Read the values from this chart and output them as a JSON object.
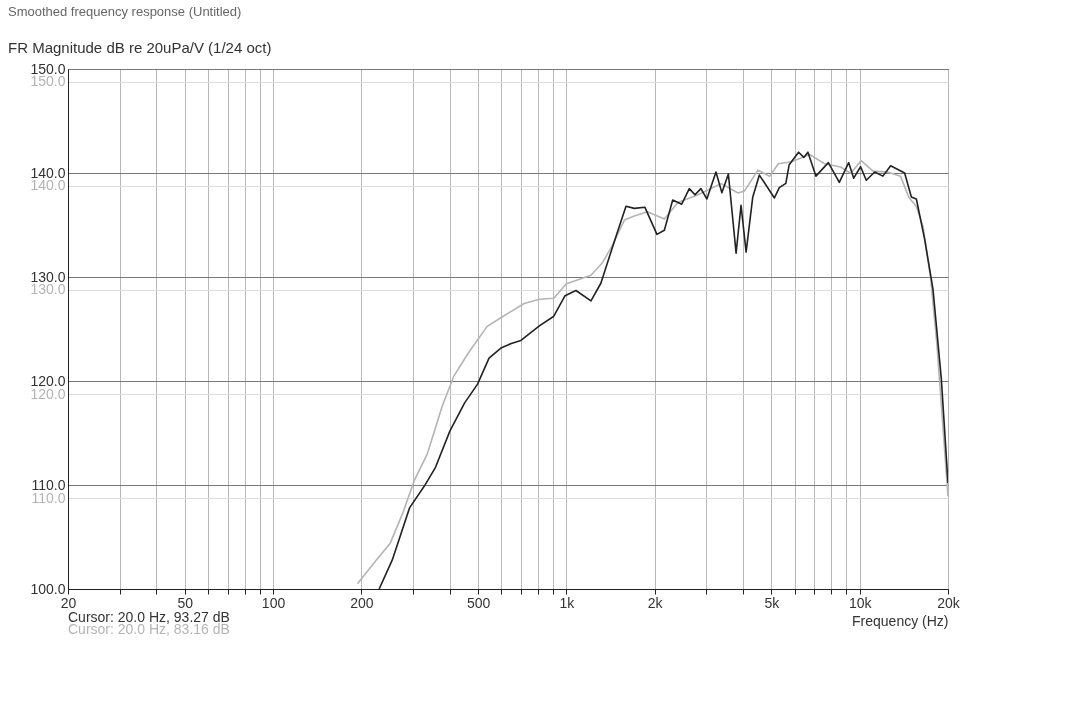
{
  "chart_data": {
    "type": "line",
    "title": "Smoothed frequency response (Untitled)",
    "subtitle": "FR Magnitude dB re 20uPa/V (1/24 oct)",
    "xlabel": "Frequency (Hz)",
    "log": "x",
    "grid": true,
    "xlim": [
      20,
      20000
    ],
    "xticks": [
      20,
      {
        "value": 30,
        "label": null
      },
      {
        "value": 40,
        "label": null
      },
      50,
      {
        "value": 60,
        "label": null
      },
      {
        "value": 70,
        "label": null
      },
      {
        "value": 80,
        "label": null
      },
      {
        "value": 90,
        "label": null
      },
      100,
      200,
      {
        "value": 300,
        "label": null
      },
      {
        "value": 400,
        "label": null
      },
      500,
      {
        "value": 600,
        "label": null
      },
      {
        "value": 700,
        "label": null
      },
      {
        "value": 800,
        "label": null
      },
      {
        "value": 900,
        "label": null
      },
      {
        "value": 1000,
        "label": "1k"
      },
      {
        "value": 2000,
        "label": "2k"
      },
      {
        "value": 3000,
        "label": null
      },
      {
        "value": 4000,
        "label": null
      },
      {
        "value": 5000,
        "label": "5k"
      },
      {
        "value": 6000,
        "label": null
      },
      {
        "value": 7000,
        "label": null
      },
      {
        "value": 8000,
        "label": null
      },
      {
        "value": 9000,
        "label": null
      },
      {
        "value": 10000,
        "label": "10k"
      },
      {
        "value": 20000,
        "label": "20k"
      }
    ],
    "ylim": [
      100,
      150
    ],
    "yticks": [
      {
        "value": 100,
        "label": "100.0"
      },
      {
        "value": 110,
        "label": "110.0"
      },
      {
        "value": 120,
        "label": "120.0"
      },
      {
        "value": 130,
        "label": "130.0"
      },
      {
        "value": 140,
        "label": "140.0"
      },
      {
        "value": 150,
        "label": "150.0"
      }
    ],
    "y2lim": [
      101.3,
      151.2
    ],
    "y2ticks": [
      {
        "value": 110,
        "label": "110.0"
      },
      {
        "value": 120,
        "label": "120.0"
      },
      {
        "value": 130,
        "label": "130.0"
      },
      {
        "value": 140,
        "label": "140.0"
      },
      {
        "value": 150,
        "label": "150.0"
      }
    ],
    "series": [
      {
        "color": "#222222",
        "x": [
          230,
          255,
          292,
          328,
          358,
          401,
          450,
          498,
          545,
          601,
          649,
          700,
          809,
          904,
          990,
          1078,
          1213,
          1311,
          1476,
          1597,
          1705,
          1853,
          2036,
          2158,
          2304,
          2473,
          2625,
          2743,
          2875,
          3013,
          3236,
          3390,
          3567,
          3790,
          3940,
          4100,
          4320,
          4550,
          5120,
          5320,
          5600,
          5750,
          6190,
          6450,
          6660,
          7090,
          7820,
          8520,
          9170,
          9540,
          10070,
          10530,
          11250,
          12000,
          12750,
          14230,
          15000,
          15600,
          16660,
          17780,
          18980,
          20000
        ],
        "values": [
          100.0,
          102.8,
          107.8,
          109.9,
          111.7,
          115.2,
          117.9,
          119.7,
          122.2,
          123.2,
          123.6,
          123.9,
          125.3,
          126.2,
          128.2,
          128.7,
          127.7,
          129.4,
          133.9,
          136.8,
          136.6,
          136.7,
          134.1,
          134.5,
          137.4,
          137.0,
          138.5,
          137.9,
          138.5,
          137.5,
          140.1,
          138.1,
          139.9,
          132.3,
          136.9,
          132.4,
          137.7,
          139.8,
          137.6,
          138.6,
          139.0,
          140.8,
          142.0,
          141.5,
          142.0,
          139.7,
          141.0,
          139.1,
          141.0,
          139.5,
          140.6,
          139.3,
          140.1,
          139.7,
          140.7,
          140.0,
          137.7,
          137.5,
          133.6,
          128.8,
          120.2,
          110.2
        ]
      },
      {
        "color": "#b4b4b4",
        "axis": "y2",
        "x": [
          194,
          224,
          251,
          277,
          304,
          336,
          378,
          413,
          462,
          537,
          604,
          718,
          809,
          906,
          1000,
          1078,
          1213,
          1327,
          1436,
          1577,
          1705,
          1890,
          2158,
          2400,
          2800,
          3370,
          3850,
          4050,
          4500,
          4930,
          5280,
          5850,
          6750,
          7600,
          8610,
          9320,
          10110,
          11100,
          12480,
          13790,
          14700,
          15600,
          16430,
          17470,
          18320,
          20000
        ],
        "values": [
          101.8,
          104.0,
          105.7,
          108.6,
          111.8,
          114.3,
          118.9,
          121.7,
          123.9,
          126.5,
          127.4,
          128.7,
          129.1,
          129.2,
          130.6,
          130.9,
          131.4,
          132.6,
          134.3,
          136.7,
          137.1,
          137.5,
          136.8,
          138.4,
          139.1,
          140.2,
          139.3,
          139.5,
          141.5,
          140.9,
          142.1,
          142.3,
          143.0,
          142.1,
          141.8,
          141.2,
          142.4,
          141.4,
          141.3,
          140.9,
          138.9,
          138.0,
          136.1,
          131.0,
          124.9,
          110.2
        ]
      }
    ],
    "annotations": [
      "Cursor: 20.0 Hz, 93.27 dB",
      "Cursor: 20.0 Hz, 83.16 dB"
    ]
  }
}
